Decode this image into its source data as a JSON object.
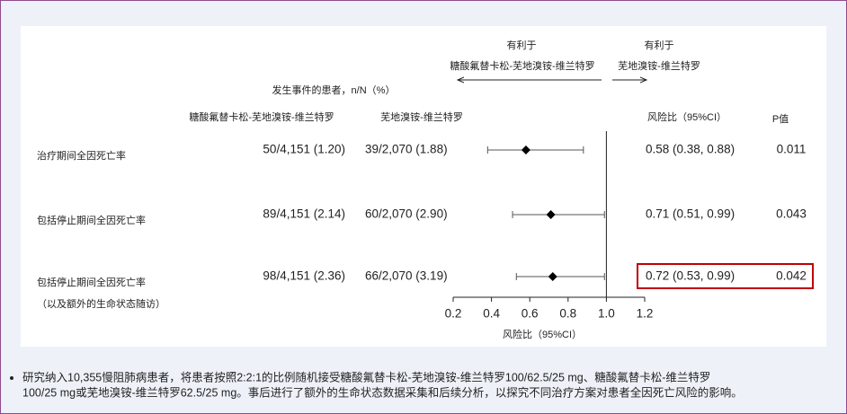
{
  "chart_data": {
    "type": "forest",
    "favors_label": "有利于",
    "favors_left": "糖酸氟替卡松-芜地溴铵-维兰特罗",
    "favors_right": "芜地溴铵-维兰特罗",
    "events_header": "发生事件的患者，n/N（%）",
    "column_headers": [
      "糖酸氟替卡松-芜地溴铵-维兰特罗",
      "芜地溴铵-维兰特罗",
      "风险比（95%CI）",
      "P值"
    ],
    "categories": [
      "治疗期间全因死亡率",
      "包括停止期间全因死亡率",
      "包括停止期间全因死亡率"
    ],
    "sublabels": [
      null,
      null,
      "（以及额外的生命状态随访）"
    ],
    "events_a": [
      "50/4,151 (1.20)",
      "89/4,151 (2.14)",
      "98/4,151 (2.36)"
    ],
    "events_b": [
      "39/2,070 (1.88)",
      "60/2,070 (2.90)",
      "66/2,070 (3.19)"
    ],
    "values": [
      0.58,
      0.71,
      0.72
    ],
    "lower": [
      0.38,
      0.51,
      0.53
    ],
    "upper": [
      0.88,
      0.99,
      0.99
    ],
    "value_labels": [
      "0.58 (0.38, 0.88)",
      "0.71 (0.51, 0.99)",
      "0.72 (0.53, 0.99)"
    ],
    "p_values": [
      0.011,
      0.043,
      0.042
    ],
    "highlight": 2,
    "reference_line": 1,
    "xlim": [
      0.2,
      1.2
    ],
    "xticks": [
      0.2,
      0.4,
      0.6,
      0.8,
      {
        "value": 1,
        "label": "1.0"
      },
      1.2
    ],
    "xlabel": "风险比（95%CI）",
    "color": "#000000",
    "highlight_color": "#c00000"
  },
  "note": [
    "研究纳入10,355慢阻肺病患者，将患者按照2:2:1的比例随机接受糖酸氟替卡松-芜地溴铵-维兰特罗100/62.5/25 mg、糖酸氟替卡松-维兰特罗",
    "100/25 mg或芜地溴铵-维兰特罗62.5/25 mg。事后进行了额外的生命状态数据采集和后续分析，以探究不同治疗方案对患者全因死亡风险的影响。"
  ]
}
